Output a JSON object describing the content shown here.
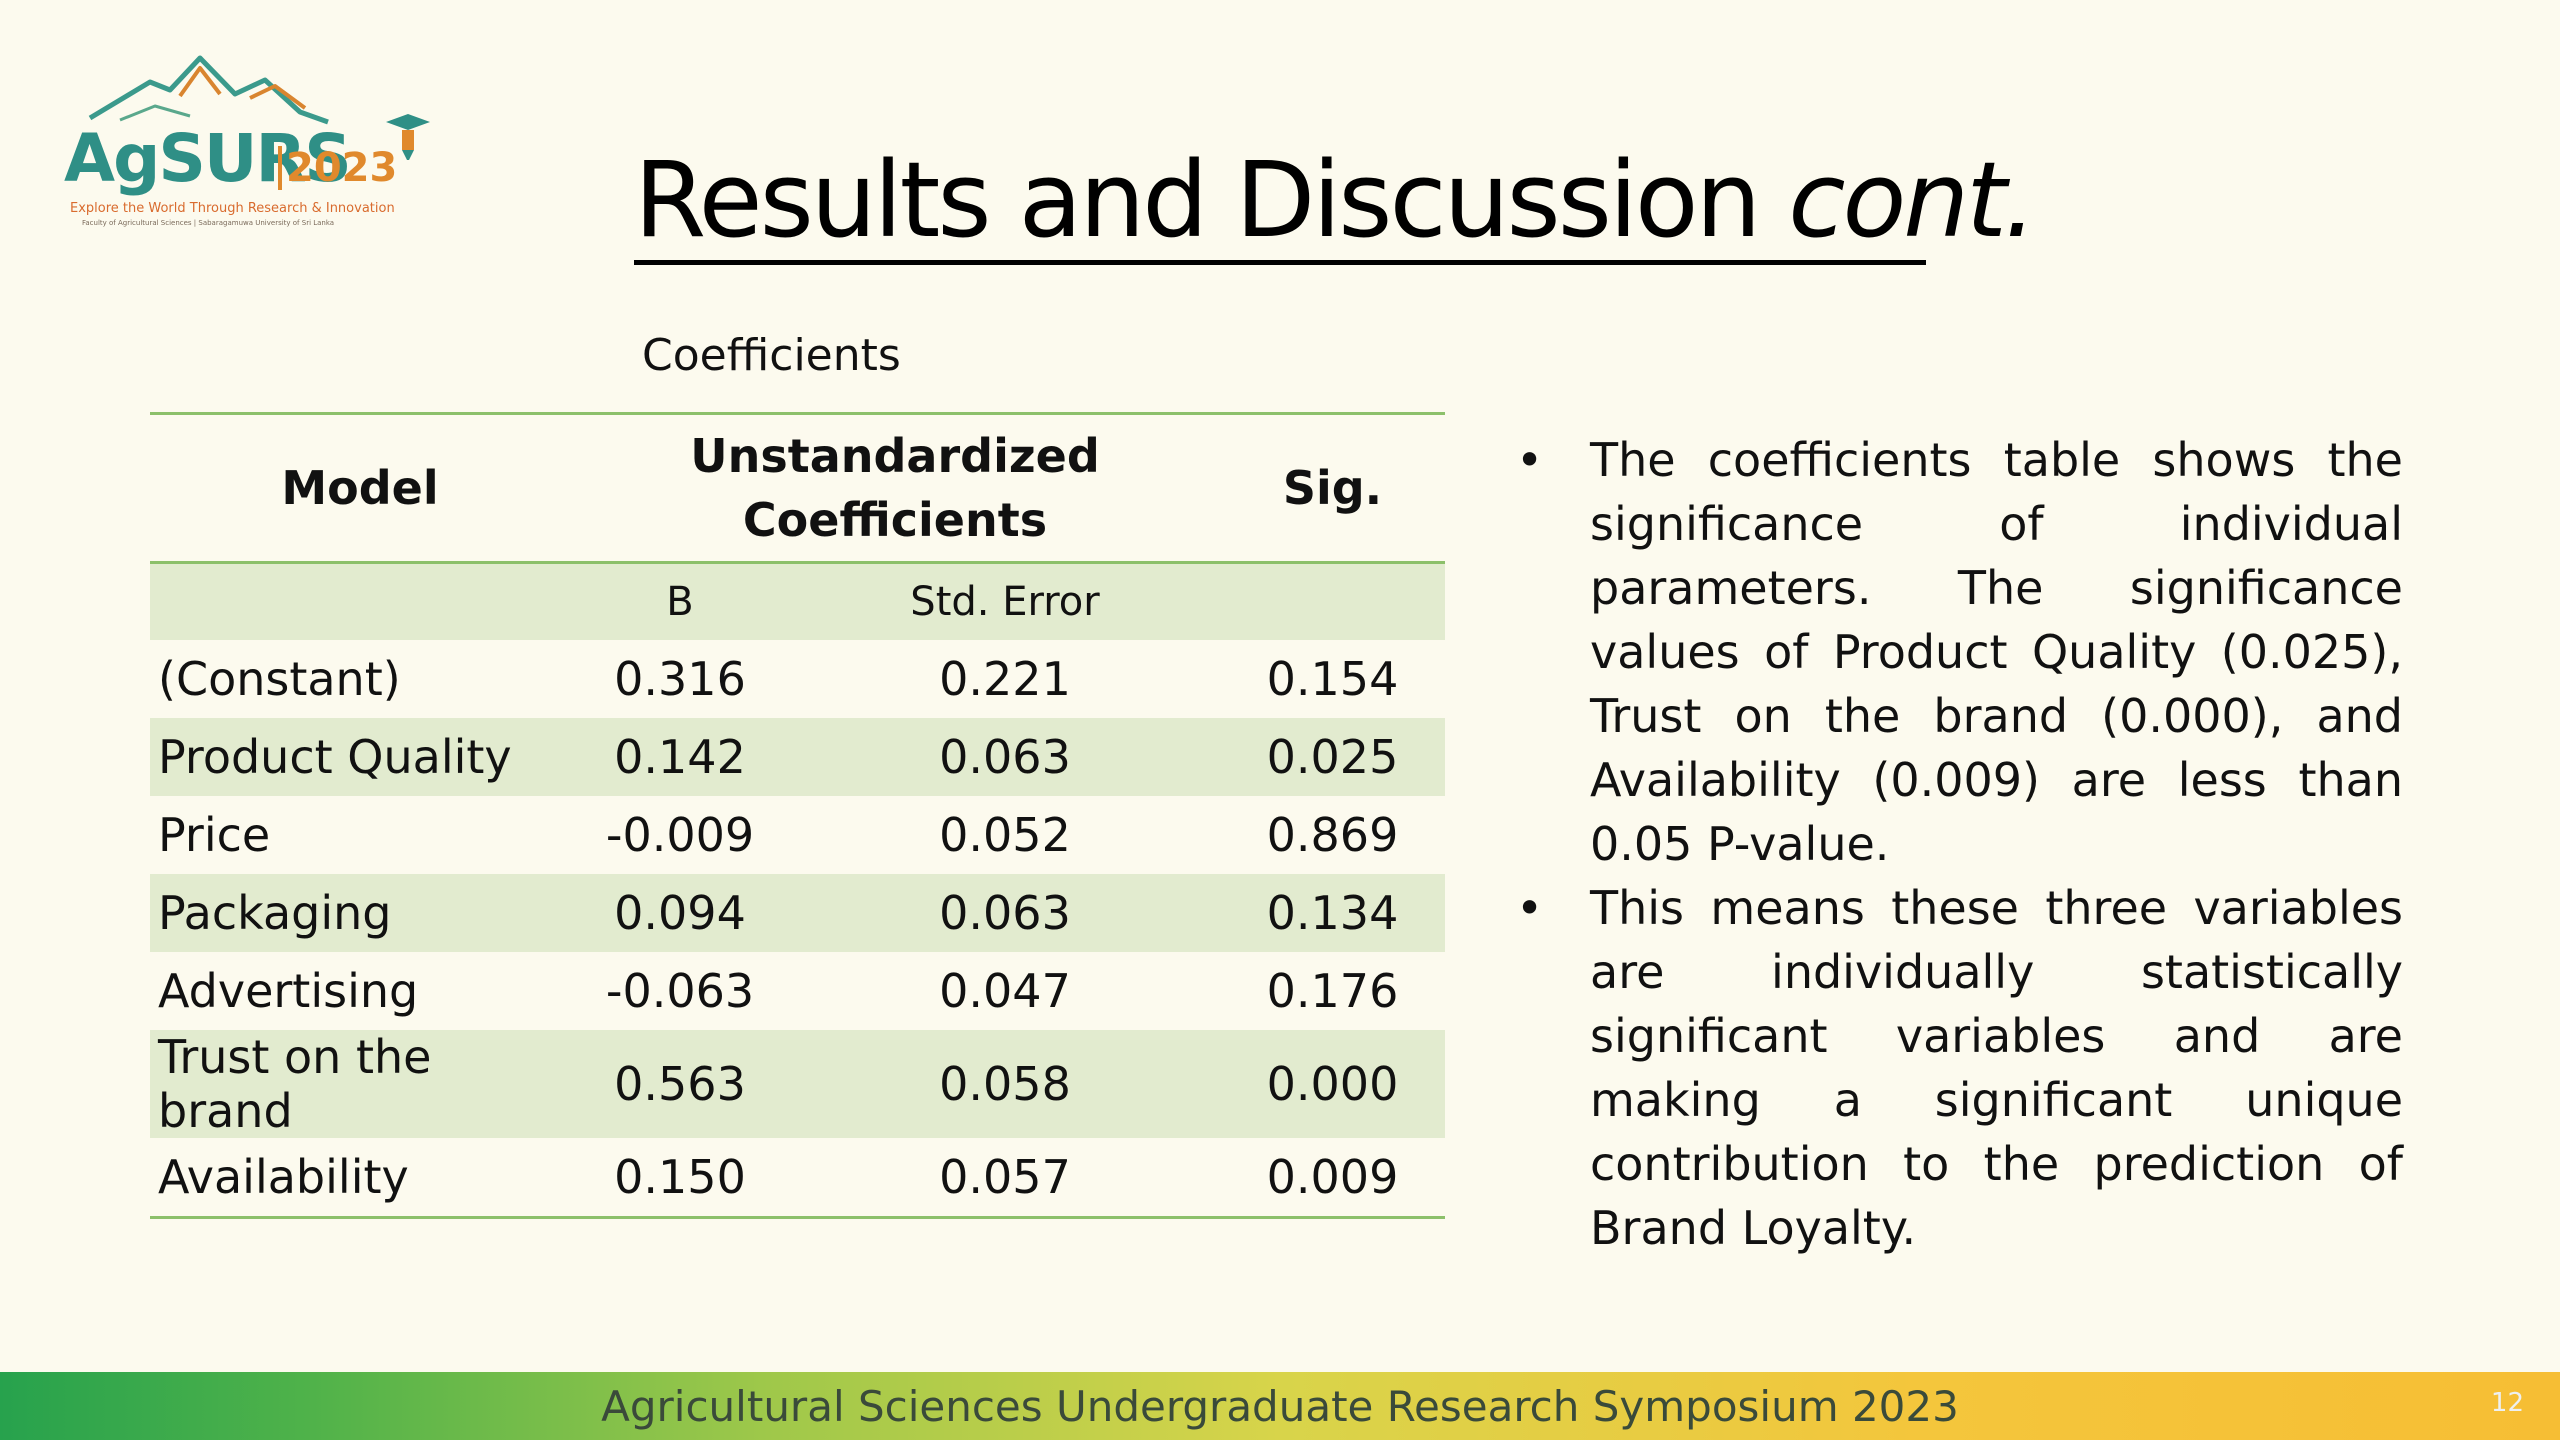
{
  "logo": {
    "word": "AgSURS",
    "year": "2023",
    "tagline": "Explore the World Through Research & Innovation",
    "subline": "Faculty of Agricultural Sciences | Sabaragamuwa University of Sri Lanka"
  },
  "title": {
    "main": "Results and Discussion ",
    "italic": "cont."
  },
  "table": {
    "caption": "Coefficients",
    "headers": {
      "model": "Model",
      "unstd_line1": "Unstandardized",
      "unstd_line2": "Coefficients",
      "sig": "Sig."
    },
    "subheaders": {
      "b": "B",
      "std_error": "Std. Error"
    },
    "rows": [
      {
        "name": "(Constant)",
        "b": "0.316",
        "se": "0.221",
        "sig": "0.154"
      },
      {
        "name": "Product Quality",
        "b": "0.142",
        "se": "0.063",
        "sig": "0.025"
      },
      {
        "name": "Price",
        "b": "-0.009",
        "se": "0.052",
        "sig": "0.869"
      },
      {
        "name": "Packaging",
        "b": "0.094",
        "se": "0.063",
        "sig": "0.134"
      },
      {
        "name": "Advertising",
        "b": "-0.063",
        "se": "0.047",
        "sig": "0.176"
      },
      {
        "name": "Trust on the brand",
        "b": "0.563",
        "se": "0.058",
        "sig": "0.000"
      },
      {
        "name": "Availability",
        "b": "0.150",
        "se": "0.057",
        "sig": "0.009"
      }
    ]
  },
  "bullets": [
    "The coefficients table shows the significance of individual parameters. The significance values of Product Quality (0.025), Trust on the brand (0.000), and Availability (0.009) are less than 0.05 P-value.",
    "This means these three variables are individually statistically significant variables and are making a significant unique contribution to the prediction of Brand Loyalty."
  ],
  "footer": {
    "text": "Agricultural Sciences Undergraduate Research Symposium 2023",
    "slide_number": "12"
  },
  "colors": {
    "background": "#fcfaee",
    "table_shade": "#e2ebcf",
    "table_rule": "#8cc06a",
    "logo_teal": "#2f8f86",
    "logo_orange": "#e0892c"
  }
}
